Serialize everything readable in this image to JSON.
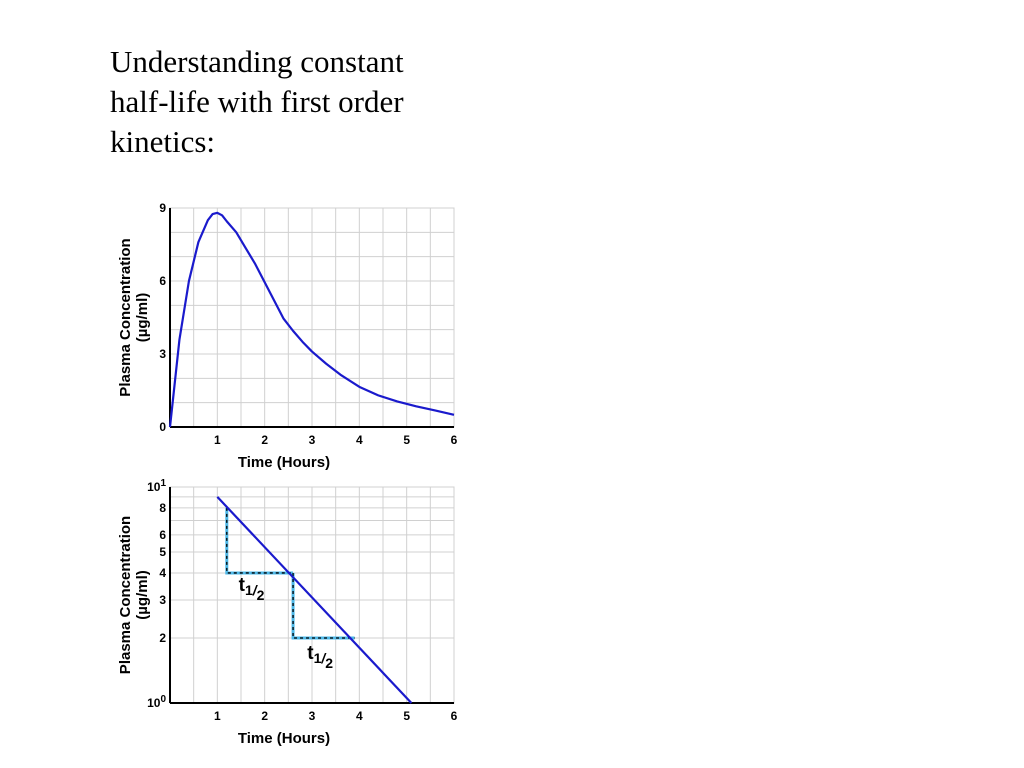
{
  "slide": {
    "title_lines": [
      "Understanding constant",
      "half-life with first order",
      "kinetics:"
    ]
  },
  "colors": {
    "curve": "#1a1acc",
    "halflife": "#4db8e8",
    "grid": "#d0d0d0",
    "axis": "#000000"
  },
  "chart_data": [
    {
      "type": "line",
      "title": "",
      "xlabel": "Time (Hours)",
      "ylabel": [
        "Plasma Concentration",
        "(µg/ml)"
      ],
      "xlim": [
        0,
        6
      ],
      "ylim": [
        0,
        9
      ],
      "x_ticks": [
        1,
        2,
        3,
        4,
        5,
        6
      ],
      "y_ticks": [
        0,
        3,
        6,
        9
      ],
      "grid": true,
      "series": [
        {
          "x": [
            0,
            0.2,
            0.4,
            0.6,
            0.8,
            0.9,
            1.0,
            1.1,
            1.2,
            1.4,
            1.6,
            1.8,
            2.0,
            2.2,
            2.4,
            2.6,
            2.8,
            3.0,
            3.3,
            3.6,
            4.0,
            4.4,
            4.8,
            5.2,
            5.6,
            6.0
          ],
          "y": [
            0,
            3.6,
            6.0,
            7.6,
            8.5,
            8.75,
            8.8,
            8.7,
            8.45,
            8.0,
            7.35,
            6.7,
            5.95,
            5.2,
            4.45,
            3.95,
            3.5,
            3.1,
            2.6,
            2.15,
            1.65,
            1.3,
            1.05,
            0.85,
            0.68,
            0.5
          ]
        }
      ]
    },
    {
      "type": "line",
      "title": "",
      "xlabel": "Time (Hours)",
      "ylabel": [
        "Plasma Concentration",
        "(µg/ml)"
      ],
      "xlim": [
        0,
        6
      ],
      "ylim": [
        1,
        10
      ],
      "y_scale": "log",
      "x_ticks": [
        1,
        2,
        3,
        4,
        5,
        6
      ],
      "y_ticks": [
        {
          "value": 10,
          "base": "10",
          "exp": "1"
        },
        {
          "value": 8,
          "label": "8"
        },
        {
          "value": 6,
          "label": "6"
        },
        {
          "value": 5,
          "label": "5"
        },
        {
          "value": 4,
          "label": "4"
        },
        {
          "value": 3,
          "label": "3"
        },
        {
          "value": 2,
          "label": "2"
        },
        {
          "value": 1,
          "base": "10",
          "exp": "0"
        }
      ],
      "y_gridlines": [
        10,
        9,
        8,
        7,
        6,
        5,
        4,
        3,
        2
      ],
      "grid": true,
      "series": [
        {
          "x": [
            1.0,
            5.1
          ],
          "y": [
            9.0,
            1.0
          ]
        }
      ],
      "half_life_steps": [
        {
          "x_from": 1.2,
          "x_to": 2.6,
          "y_from": 8,
          "y_to": 4
        },
        {
          "x_from": 2.6,
          "x_to": 3.9,
          "y_from": 4,
          "y_to": 2
        }
      ],
      "annotations": [
        {
          "text": "t",
          "sub": "1",
          "sub2": "/",
          "sub3": "2",
          "x": 1.45,
          "y": 3.3
        },
        {
          "text": "t",
          "sub": "1",
          "sub2": "/",
          "sub3": "2",
          "x": 2.9,
          "y": 1.6
        }
      ]
    }
  ]
}
